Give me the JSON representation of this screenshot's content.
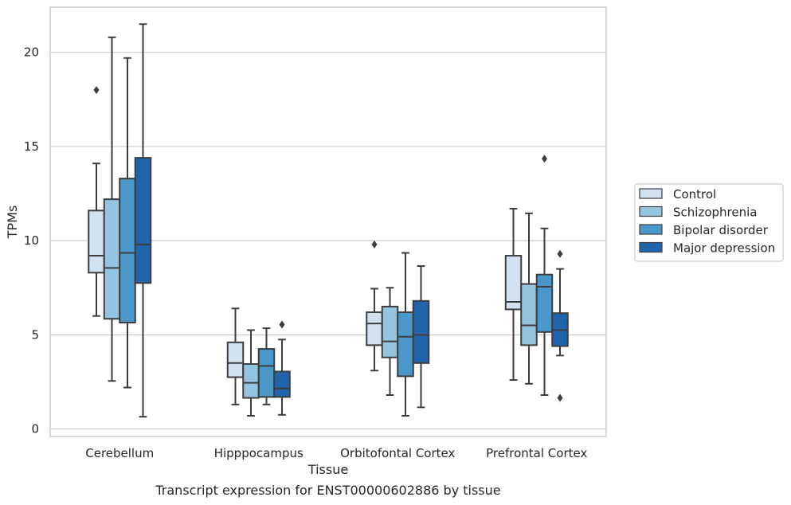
{
  "chart_data": {
    "type": "boxplot",
    "title": "",
    "caption": "Transcript expression for ENST00000602886 by tissue",
    "xlabel": "Tissue",
    "ylabel": "TPMs",
    "ylim": [
      -0.4,
      22.4
    ],
    "yticks": [
      0,
      5,
      10,
      15,
      20
    ],
    "ytick_labels": [
      "0",
      "5",
      "10",
      "15",
      "20"
    ],
    "grid": "horizontal",
    "legend_position": "right",
    "categories": [
      "Cerebellum",
      "Hipppocampus",
      "Orbitofontal Cortex",
      "Prefrontal Cortex"
    ],
    "series": [
      {
        "name": "Control",
        "color": "#d0e1f2",
        "boxes": [
          {
            "min": 6.0,
            "q1": 8.3,
            "median": 9.2,
            "q3": 11.6,
            "max": 14.1,
            "outliers": [
              18.0
            ]
          },
          {
            "min": 1.3,
            "q1": 2.75,
            "median": 3.5,
            "q3": 4.6,
            "max": 6.4,
            "outliers": []
          },
          {
            "min": 3.1,
            "q1": 4.45,
            "median": 5.6,
            "q3": 6.2,
            "max": 7.45,
            "outliers": [
              9.8
            ]
          },
          {
            "min": 2.6,
            "q1": 6.35,
            "median": 6.75,
            "q3": 9.2,
            "max": 11.7,
            "outliers": []
          }
        ]
      },
      {
        "name": "Schizophrenia",
        "color": "#94c4df",
        "boxes": [
          {
            "min": 2.55,
            "q1": 5.85,
            "median": 8.55,
            "q3": 12.2,
            "max": 20.8,
            "outliers": []
          },
          {
            "min": 0.7,
            "q1": 1.65,
            "median": 2.45,
            "q3": 3.45,
            "max": 5.25,
            "outliers": []
          },
          {
            "min": 1.8,
            "q1": 3.8,
            "median": 4.65,
            "q3": 6.5,
            "max": 7.5,
            "outliers": []
          },
          {
            "min": 2.4,
            "q1": 4.45,
            "median": 5.5,
            "q3": 7.7,
            "max": 11.45,
            "outliers": []
          }
        ]
      },
      {
        "name": "Bipolar disorder",
        "color": "#4a98c9",
        "boxes": [
          {
            "min": 2.2,
            "q1": 5.65,
            "median": 9.35,
            "q3": 13.3,
            "max": 19.7,
            "outliers": []
          },
          {
            "min": 1.3,
            "q1": 1.7,
            "median": 3.35,
            "q3": 4.25,
            "max": 5.35,
            "outliers": []
          },
          {
            "min": 0.7,
            "q1": 2.8,
            "median": 4.9,
            "q3": 6.2,
            "max": 9.35,
            "outliers": []
          },
          {
            "min": 1.8,
            "q1": 5.15,
            "median": 7.55,
            "q3": 8.2,
            "max": 10.65,
            "outliers": [
              14.35
            ]
          }
        ]
      },
      {
        "name": "Major depression",
        "color": "#2164ab",
        "boxes": [
          {
            "min": 0.65,
            "q1": 7.75,
            "median": 9.8,
            "q3": 14.4,
            "max": 21.5,
            "outliers": []
          },
          {
            "min": 0.75,
            "q1": 1.7,
            "median": 2.15,
            "q3": 3.05,
            "max": 4.75,
            "outliers": [
              5.55
            ]
          },
          {
            "min": 1.15,
            "q1": 3.5,
            "median": 5.0,
            "q3": 6.8,
            "max": 8.65,
            "outliers": []
          },
          {
            "min": 3.9,
            "q1": 4.4,
            "median": 5.25,
            "q3": 6.15,
            "max": 8.5,
            "outliers": [
              9.3,
              1.65
            ]
          }
        ]
      }
    ]
  }
}
